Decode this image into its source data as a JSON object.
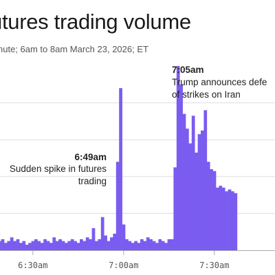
{
  "header": {
    "title": "utures trading volume",
    "subtitle": "nute; 6am to 8am March 23, 2026; ET"
  },
  "colors": {
    "bar": "#7b5cf0",
    "grid": "#dddddd",
    "axis": "#aaaaaa",
    "text": "#222222"
  },
  "chart_data": {
    "type": "bar",
    "title": "utures trading volume",
    "subtitle": "nute; 6am to 8am March 23, 2026; ET",
    "x_unit": "minute",
    "x_range": [
      "6:11am",
      "7:37am"
    ],
    "x_ticks": [
      "6:30am",
      "7:00am",
      "7:30am"
    ],
    "ylim": [
      0,
      100
    ],
    "grid": true,
    "values": [
      4,
      3,
      5,
      4,
      6,
      5,
      3,
      4,
      5,
      6,
      4,
      5,
      7,
      5,
      6,
      4,
      5,
      3,
      4,
      5,
      6,
      5,
      4,
      6,
      5,
      4,
      7,
      5,
      6,
      5,
      4,
      5,
      6,
      5,
      4,
      6,
      5,
      7,
      6,
      12,
      5,
      6,
      18,
      8,
      5,
      7,
      9,
      48,
      88,
      14,
      6,
      5,
      4,
      5,
      4,
      6,
      5,
      7,
      6,
      5,
      4,
      6,
      5,
      4,
      6,
      6,
      45,
      100,
      90,
      74,
      66,
      58,
      73,
      53,
      63,
      65,
      76,
      48,
      44,
      43,
      34,
      35,
      34,
      32,
      33,
      32,
      31
    ],
    "annotations": [
      {
        "time": "6:49am",
        "lines": [
          "Sudden spike in futures",
          "trading"
        ]
      },
      {
        "time": "7:05am",
        "lines": [
          "Trump announces defe",
          "of strikes on Iran"
        ]
      }
    ]
  }
}
